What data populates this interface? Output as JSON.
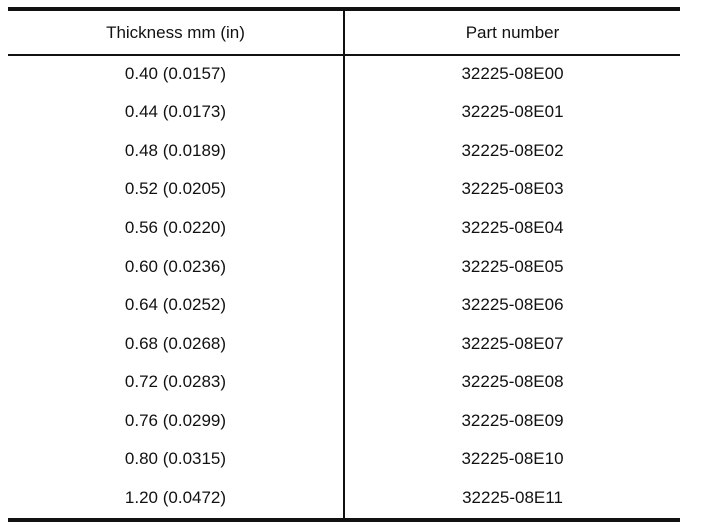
{
  "table": {
    "headers": [
      "Thickness mm (in)",
      "Part number"
    ],
    "rows": [
      [
        "0.40 (0.0157)",
        "32225-08E00"
      ],
      [
        "0.44 (0.0173)",
        "32225-08E01"
      ],
      [
        "0.48 (0.0189)",
        "32225-08E02"
      ],
      [
        "0.52 (0.0205)",
        "32225-08E03"
      ],
      [
        "0.56 (0.0220)",
        "32225-08E04"
      ],
      [
        "0.60 (0.0236)",
        "32225-08E05"
      ],
      [
        "0.64 (0.0252)",
        "32225-08E06"
      ],
      [
        "0.68 (0.0268)",
        "32225-08E07"
      ],
      [
        "0.72 (0.0283)",
        "32225-08E08"
      ],
      [
        "0.76 (0.0299)",
        "32225-08E09"
      ],
      [
        "0.80 (0.0315)",
        "32225-08E10"
      ],
      [
        "1.20 (0.0472)",
        "32225-08E11"
      ]
    ]
  }
}
